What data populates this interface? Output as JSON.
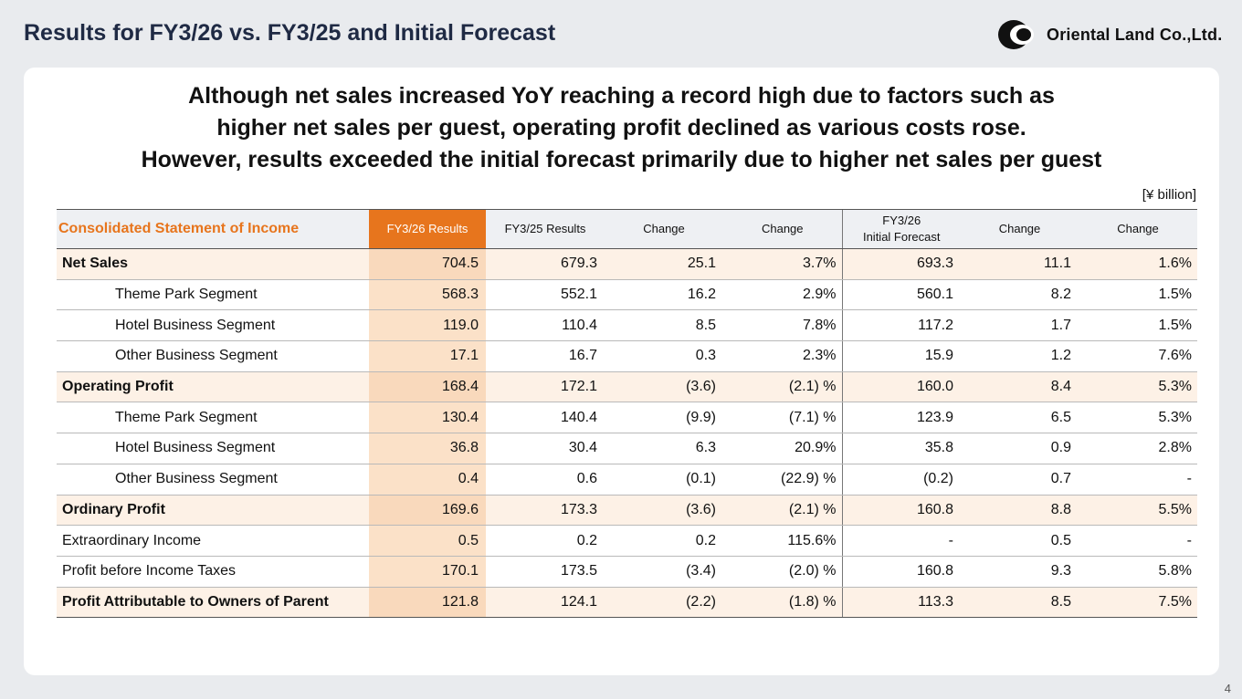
{
  "slide": {
    "title": "Results for FY3/26 vs. FY3/25 and Initial Forecast",
    "logo_text": "Oriental Land Co.,Ltd.",
    "page_number": "4"
  },
  "headline": [
    "Although net sales increased YoY reaching a record high due to factors such as",
    "higher net sales per guest, operating profit declined as various costs rose.",
    "However, results exceeded the initial forecast primarily due to higher net sales per guest"
  ],
  "unit": "[¥ billion]",
  "table": {
    "headers": {
      "label": "Consolidated Statement of Income",
      "fy26": "FY3/26 Results",
      "fy25": "FY3/25 Results",
      "change_amt": "Change",
      "change_pct": "Change",
      "forecast_line1": "FY3/26",
      "forecast_line2": "Initial Forecast",
      "fc_change_amt": "Change",
      "fc_change_pct": "Change"
    },
    "rows": [
      {
        "label": "Net Sales",
        "fy26": "704.5",
        "fy25": "679.3",
        "chg": "25.1",
        "chg_pct": "3.7%",
        "fc": "693.3",
        "fc_chg": "11.1",
        "fc_chg_pct": "1.6%"
      },
      {
        "label": "Theme Park Segment",
        "fy26": "568.3",
        "fy25": "552.1",
        "chg": "16.2",
        "chg_pct": "2.9%",
        "fc": "560.1",
        "fc_chg": "8.2",
        "fc_chg_pct": "1.5%"
      },
      {
        "label": "Hotel Business Segment",
        "fy26": "119.0",
        "fy25": "110.4",
        "chg": "8.5",
        "chg_pct": "7.8%",
        "fc": "117.2",
        "fc_chg": "1.7",
        "fc_chg_pct": "1.5%"
      },
      {
        "label": "Other Business Segment",
        "fy26": "17.1",
        "fy25": "16.7",
        "chg": "0.3",
        "chg_pct": "2.3%",
        "fc": "15.9",
        "fc_chg": "1.2",
        "fc_chg_pct": "7.6%"
      },
      {
        "label": "Operating Profit",
        "fy26": "168.4",
        "fy25": "172.1",
        "chg": "(3.6)",
        "chg_pct": "(2.1) %",
        "fc": "160.0",
        "fc_chg": "8.4",
        "fc_chg_pct": "5.3%"
      },
      {
        "label": "Theme Park Segment",
        "fy26": "130.4",
        "fy25": "140.4",
        "chg": "(9.9)",
        "chg_pct": "(7.1) %",
        "fc": "123.9",
        "fc_chg": "6.5",
        "fc_chg_pct": "5.3%"
      },
      {
        "label": "Hotel Business Segment",
        "fy26": "36.8",
        "fy25": "30.4",
        "chg": "6.3",
        "chg_pct": "20.9%",
        "fc": "35.8",
        "fc_chg": "0.9",
        "fc_chg_pct": "2.8%"
      },
      {
        "label": "Other Business Segment",
        "fy26": "0.4",
        "fy25": "0.6",
        "chg": "(0.1)",
        "chg_pct": "(22.9) %",
        "fc": "(0.2)",
        "fc_chg": "0.7",
        "fc_chg_pct": "-"
      },
      {
        "label": "Ordinary Profit",
        "fy26": "169.6",
        "fy25": "173.3",
        "chg": "(3.6)",
        "chg_pct": "(2.1) %",
        "fc": "160.8",
        "fc_chg": "8.8",
        "fc_chg_pct": "5.5%"
      },
      {
        "label": "Extraordinary Income",
        "fy26": "0.5",
        "fy25": "0.2",
        "chg": "0.2",
        "chg_pct": "115.6%",
        "fc": "-",
        "fc_chg": "0.5",
        "fc_chg_pct": "-"
      },
      {
        "label": "Profit before Income Taxes",
        "fy26": "170.1",
        "fy25": "173.5",
        "chg": "(3.4)",
        "chg_pct": "(2.0) %",
        "fc": "160.8",
        "fc_chg": "9.3",
        "fc_chg_pct": "5.8%"
      },
      {
        "label": "Profit Attributable to Owners of Parent",
        "fy26": "121.8",
        "fy25": "124.1",
        "chg": "(2.2)",
        "chg_pct": "(1.8) %",
        "fc": "113.3",
        "fc_chg": "8.5",
        "fc_chg_pct": "7.5%"
      }
    ]
  }
}
